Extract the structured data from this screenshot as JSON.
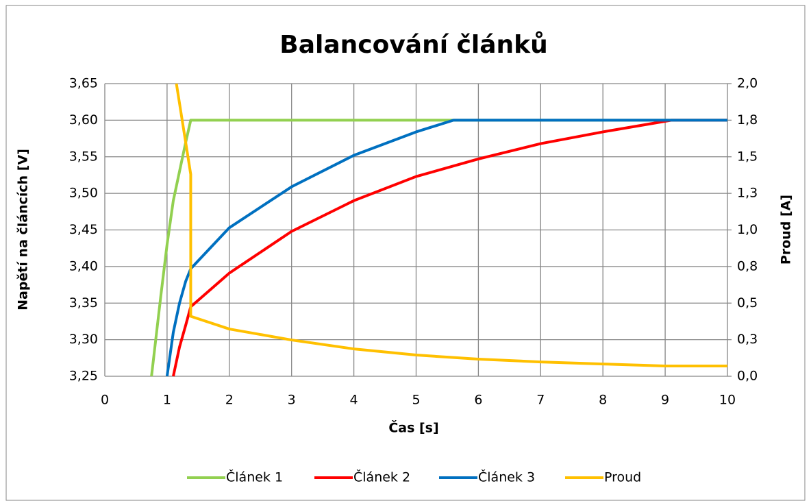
{
  "chart_data": {
    "type": "line",
    "title": "Balancování článků",
    "x_label": "Čas [s]",
    "y_label": "Napětí na článcích [V]",
    "y2_label": "Proud [A]",
    "xlim": [
      0,
      10
    ],
    "xticks": [
      0,
      1,
      2,
      3,
      4,
      5,
      6,
      7,
      8,
      9,
      10
    ],
    "ylim": [
      3.25,
      3.65
    ],
    "yticks": [
      {
        "value": 3.25,
        "label": "3,25"
      },
      {
        "value": 3.3,
        "label": "3,30"
      },
      {
        "value": 3.35,
        "label": "3,35"
      },
      {
        "value": 3.4,
        "label": "3,40"
      },
      {
        "value": 3.45,
        "label": "3,45"
      },
      {
        "value": 3.5,
        "label": "3,50"
      },
      {
        "value": 3.55,
        "label": "3,55"
      },
      {
        "value": 3.6,
        "label": "3,60"
      },
      {
        "value": 3.65,
        "label": "3,65"
      }
    ],
    "y2lim": [
      0,
      2
    ],
    "y2ticks": [
      {
        "value": 0,
        "label": "0,0"
      },
      {
        "value": 0.25,
        "label": "0,3"
      },
      {
        "value": 0.5,
        "label": "0,5"
      },
      {
        "value": 0.75,
        "label": "0,8"
      },
      {
        "value": 1,
        "label": "1,0"
      },
      {
        "value": 1.25,
        "label": "1,3"
      },
      {
        "value": 1.5,
        "label": "1,5"
      },
      {
        "value": 1.75,
        "label": "1,8"
      },
      {
        "value": 2,
        "label": "2,0"
      }
    ],
    "grid": true,
    "legend": "bottom",
    "series": [
      {
        "name": "Článek 1",
        "color": "#92d050",
        "x": [
          0.75,
          0.9,
          1.0,
          1.1,
          1.2,
          1.3,
          1.38,
          10
        ],
        "values": [
          3.25,
          3.36,
          3.43,
          3.49,
          3.53,
          3.57,
          3.6,
          3.6
        ]
      },
      {
        "name": "Článek 2",
        "color": "#ff0000",
        "x": [
          1.1,
          1.2,
          1.3,
          1.38,
          2,
          3,
          4,
          5,
          6,
          7,
          8,
          9.1,
          10
        ],
        "values": [
          3.25,
          3.29,
          3.32,
          3.345,
          3.391,
          3.448,
          3.49,
          3.523,
          3.547,
          3.568,
          3.584,
          3.6,
          3.6
        ]
      },
      {
        "name": "Článek 3",
        "color": "#0070c0",
        "x": [
          1.0,
          1.1,
          1.2,
          1.3,
          1.38,
          2,
          3,
          4,
          5,
          5.6,
          10
        ],
        "values": [
          3.25,
          3.31,
          3.35,
          3.38,
          3.397,
          3.453,
          3.509,
          3.552,
          3.584,
          3.6,
          3.6
        ]
      },
      {
        "name": "Proud",
        "color": "#ffc000",
        "axis": "y2",
        "x": [
          1.15,
          1.38,
          1.38,
          2,
          3,
          4,
          5,
          6,
          7,
          8,
          9,
          10
        ],
        "values": [
          2.0,
          1.38,
          0.41,
          0.323,
          0.248,
          0.187,
          0.145,
          0.117,
          0.098,
          0.084,
          0.07,
          0.07
        ]
      }
    ]
  }
}
